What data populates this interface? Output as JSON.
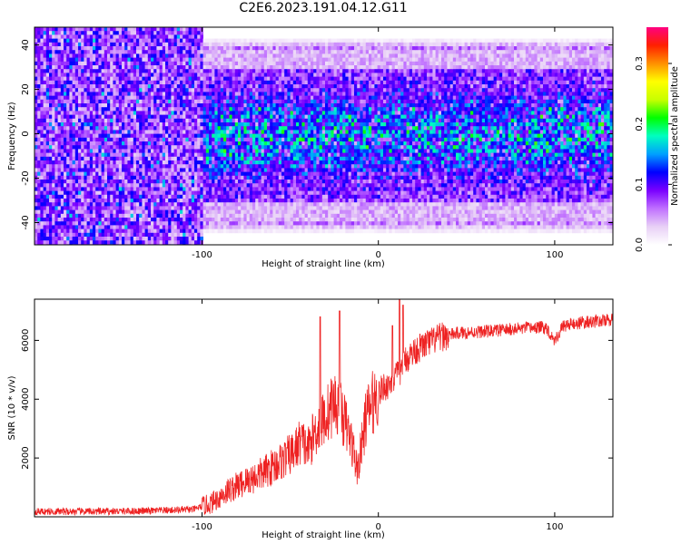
{
  "title": "C2E6.2023.191.04.12.G11",
  "chart_data": [
    {
      "type": "heatmap",
      "xlabel": "Height of straight line (km)",
      "ylabel": "Frequency (Hz)",
      "xlim": [
        -195,
        133
      ],
      "ylim": [
        -50,
        48
      ],
      "xticks": [
        -100,
        0,
        100
      ],
      "yticks": [
        -40,
        -20,
        0,
        20,
        40
      ],
      "colorbar": {
        "label": "Normalized spectral amplitude",
        "range": [
          0,
          0.36
        ],
        "ticks": [
          "0.0",
          "0.1",
          "0.2",
          "0.3"
        ],
        "colors": [
          "#ffffff",
          "#e8d0f6",
          "#c070ff",
          "#7a00ff",
          "#0000ff",
          "#00a0ff",
          "#00ffc0",
          "#00ff00",
          "#c8ff00",
          "#ffff00",
          "#ff9000",
          "#ff2000",
          "#ff0080"
        ]
      },
      "description_values": {
        "band_halfwidth_hz_low_height": 48,
        "band_halfwidth_hz_high_height": 38,
        "transition_height_km": -100,
        "peak_amplitude": 0.22
      }
    },
    {
      "type": "line",
      "xlabel": "Height of straight line (km)",
      "ylabel": "SNR (10 * v/v)",
      "xlim": [
        -195,
        133
      ],
      "ylim": [
        0,
        7400
      ],
      "xticks": [
        -100,
        0,
        100
      ],
      "yticks": [
        2000,
        4000,
        6000
      ],
      "color": "#ee2222",
      "series": [
        {
          "x": [
            -195,
            -160,
            -130,
            -105,
            -95,
            -85,
            -75,
            -65,
            -55,
            -48,
            -44,
            -40,
            -35,
            -30,
            -25,
            -20,
            -15,
            -12,
            -10,
            -7,
            -4,
            0,
            3,
            6,
            9,
            12,
            15,
            18,
            22,
            28,
            35,
            45,
            60,
            80,
            95,
            100,
            105,
            115,
            133
          ],
          "y": [
            180,
            180,
            200,
            250,
            450,
            900,
            1200,
            1500,
            1900,
            2200,
            2600,
            2300,
            3000,
            3400,
            3900,
            3400,
            2500,
            1600,
            2200,
            3400,
            3800,
            4200,
            4400,
            4500,
            4700,
            4900,
            5300,
            5500,
            5700,
            5900,
            6100,
            6250,
            6300,
            6400,
            6450,
            6000,
            6500,
            6600,
            6700
          ]
        }
      ],
      "spikes": [
        {
          "x": -33,
          "y": 6800
        },
        {
          "x": -22,
          "y": 7000
        },
        {
          "x": 8,
          "y": 6500
        },
        {
          "x": 12,
          "y": 7400
        },
        {
          "x": 14,
          "y": 7200
        }
      ]
    }
  ]
}
